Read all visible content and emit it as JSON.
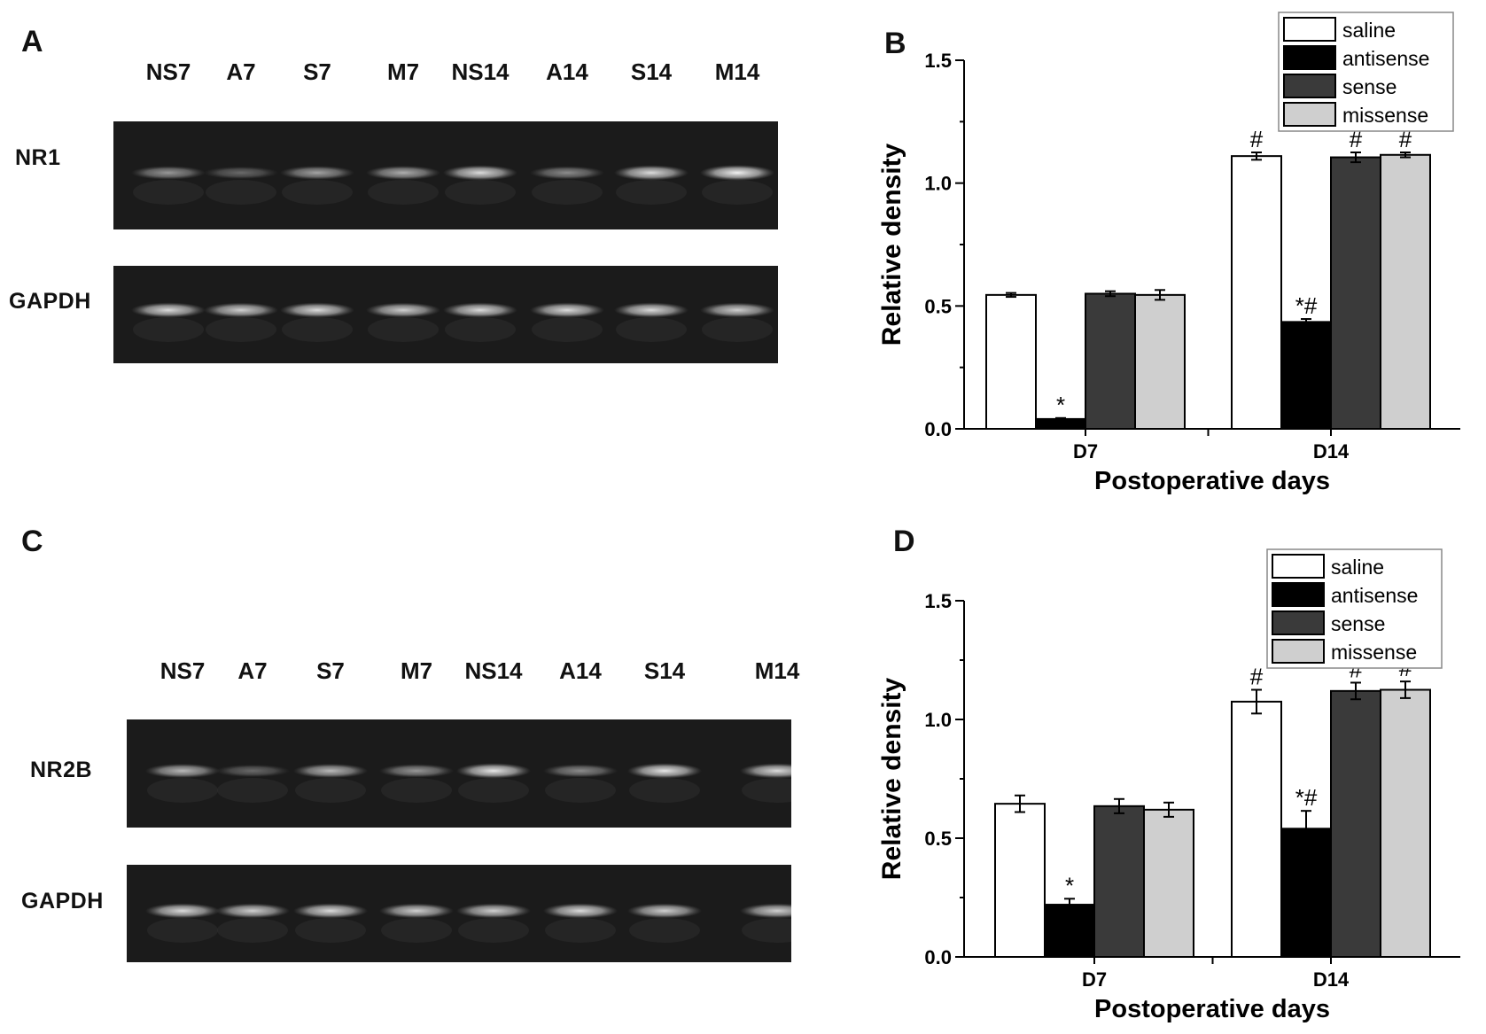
{
  "panels": {
    "a": {
      "letter": "A",
      "lanes": [
        "NS7",
        "A7",
        "S7",
        "M7",
        "NS14",
        "A14",
        "S14",
        "M14"
      ],
      "rows": [
        {
          "label": "NR1",
          "band_intensity": [
            0.55,
            0.35,
            0.6,
            0.65,
            0.85,
            0.5,
            0.85,
            0.95
          ]
        },
        {
          "label": "GAPDH",
          "band_intensity": [
            0.85,
            0.8,
            0.85,
            0.8,
            0.85,
            0.85,
            0.85,
            0.8
          ]
        }
      ]
    },
    "c": {
      "letter": "C",
      "lanes": [
        "NS7",
        "A7",
        "S7",
        "M7",
        "NS14",
        "A14",
        "S14",
        "M14"
      ],
      "rows": [
        {
          "label": "NR2B",
          "band_intensity": [
            0.7,
            0.35,
            0.7,
            0.55,
            0.9,
            0.5,
            0.9,
            0.85
          ]
        },
        {
          "label": "GAPDH",
          "band_intensity": [
            0.85,
            0.8,
            0.85,
            0.8,
            0.8,
            0.85,
            0.8,
            0.8
          ]
        }
      ]
    }
  },
  "chart_data": [
    {
      "panel": "B",
      "type": "bar",
      "xlabel": "Postoperative days",
      "ylabel": "Relative density",
      "ylim": [
        0,
        1.5
      ],
      "yticks": [
        "0.0",
        "0.5",
        "1.0",
        "1.5"
      ],
      "yticks_values": [
        0,
        0.5,
        1.0,
        1.5
      ],
      "categories": [
        "D7",
        "D14"
      ],
      "legend_position": "top-right",
      "series": [
        {
          "name": "saline",
          "color": "#ffffff",
          "values": [
            0.545,
            1.11
          ],
          "errors": [
            0.008,
            0.015
          ],
          "annotations": [
            "",
            "#"
          ]
        },
        {
          "name": "antisense",
          "color": "#000000",
          "values": [
            0.04,
            0.435
          ],
          "errors": [
            0.004,
            0.012
          ],
          "annotations": [
            "*",
            "*#"
          ]
        },
        {
          "name": "sense",
          "color": "#3a3a3a",
          "values": [
            0.55,
            1.105
          ],
          "errors": [
            0.01,
            0.02
          ],
          "annotations": [
            "",
            "#"
          ]
        },
        {
          "name": "missense",
          "color": "#cfcfcf",
          "values": [
            0.545,
            1.115
          ],
          "errors": [
            0.02,
            0.01
          ],
          "annotations": [
            "",
            "#"
          ]
        }
      ]
    },
    {
      "panel": "D",
      "type": "bar",
      "xlabel": "Postoperative days",
      "ylabel": "Relative density",
      "ylim": [
        0,
        1.5
      ],
      "yticks": [
        "0.0",
        "0.5",
        "1.0",
        "1.5"
      ],
      "yticks_values": [
        0,
        0.5,
        1.0,
        1.5
      ],
      "categories": [
        "D7",
        "D14"
      ],
      "legend_position": "top-right",
      "series": [
        {
          "name": "saline",
          "color": "#ffffff",
          "values": [
            0.645,
            1.075
          ],
          "errors": [
            0.035,
            0.05
          ],
          "annotations": [
            "",
            "#"
          ]
        },
        {
          "name": "antisense",
          "color": "#000000",
          "values": [
            0.22,
            0.54
          ],
          "errors": [
            0.025,
            0.075
          ],
          "annotations": [
            "*",
            "*#"
          ]
        },
        {
          "name": "sense",
          "color": "#3a3a3a",
          "values": [
            0.635,
            1.12
          ],
          "errors": [
            0.03,
            0.035
          ],
          "annotations": [
            "",
            "#"
          ]
        },
        {
          "name": "missense",
          "color": "#cfcfcf",
          "values": [
            0.62,
            1.125
          ],
          "errors": [
            0.03,
            0.035
          ],
          "annotations": [
            "",
            "#"
          ]
        }
      ]
    }
  ]
}
